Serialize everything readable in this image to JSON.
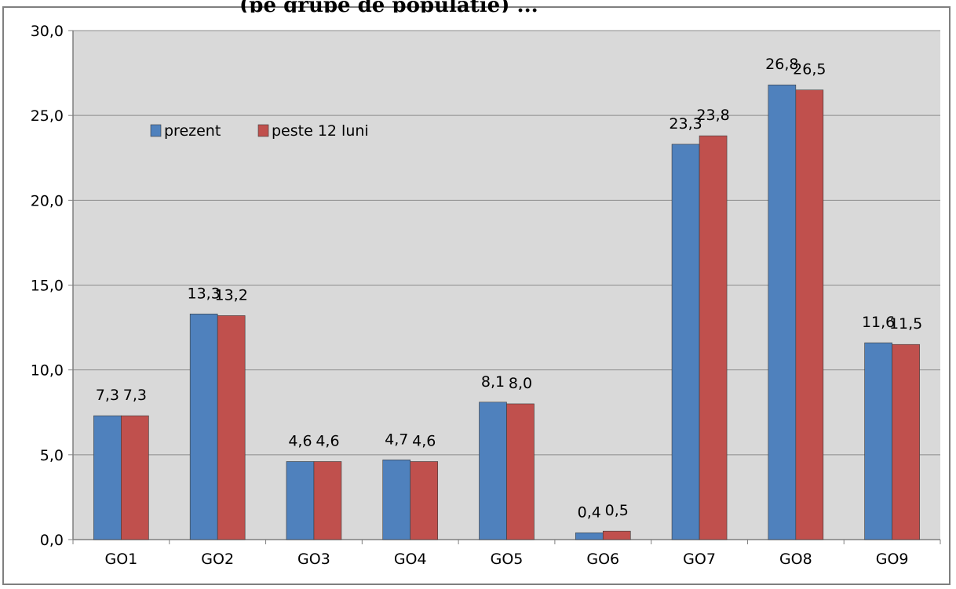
{
  "header": {
    "cut_title": "(pe grupe de populație) ..."
  },
  "chart_data": {
    "type": "bar",
    "categories": [
      "GO1",
      "GO2",
      "GO3",
      "GO4",
      "GO5",
      "GO6",
      "GO7",
      "GO8",
      "GO9"
    ],
    "series": [
      {
        "name": "prezent",
        "color": "#4f81bd",
        "values": [
          7.3,
          13.3,
          4.6,
          4.7,
          8.1,
          0.4,
          23.3,
          26.8,
          11.6
        ],
        "labels": [
          "7,3",
          "13,3",
          "4,6",
          "4,7",
          "8,1",
          "0,4",
          "23,3",
          "26,8",
          "11,6"
        ]
      },
      {
        "name": "peste 12 luni",
        "color": "#c0504d",
        "values": [
          7.3,
          13.2,
          4.6,
          4.6,
          8.0,
          0.5,
          23.8,
          26.5,
          11.5
        ],
        "labels": [
          "7,3",
          "13,2",
          "4,6",
          "4,6",
          "8,0",
          "0,5",
          "23,8",
          "26,5",
          "11,5"
        ]
      }
    ],
    "ylim": [
      0,
      30
    ],
    "yticks": [
      0,
      5,
      10,
      15,
      20,
      25,
      30
    ],
    "ytick_labels": [
      "0,0",
      "5,0",
      "10,0",
      "15,0",
      "20,0",
      "25,0",
      "30,0"
    ],
    "plot_background": "#d9d9d9",
    "grid": true,
    "legend_position": "upper-left"
  }
}
